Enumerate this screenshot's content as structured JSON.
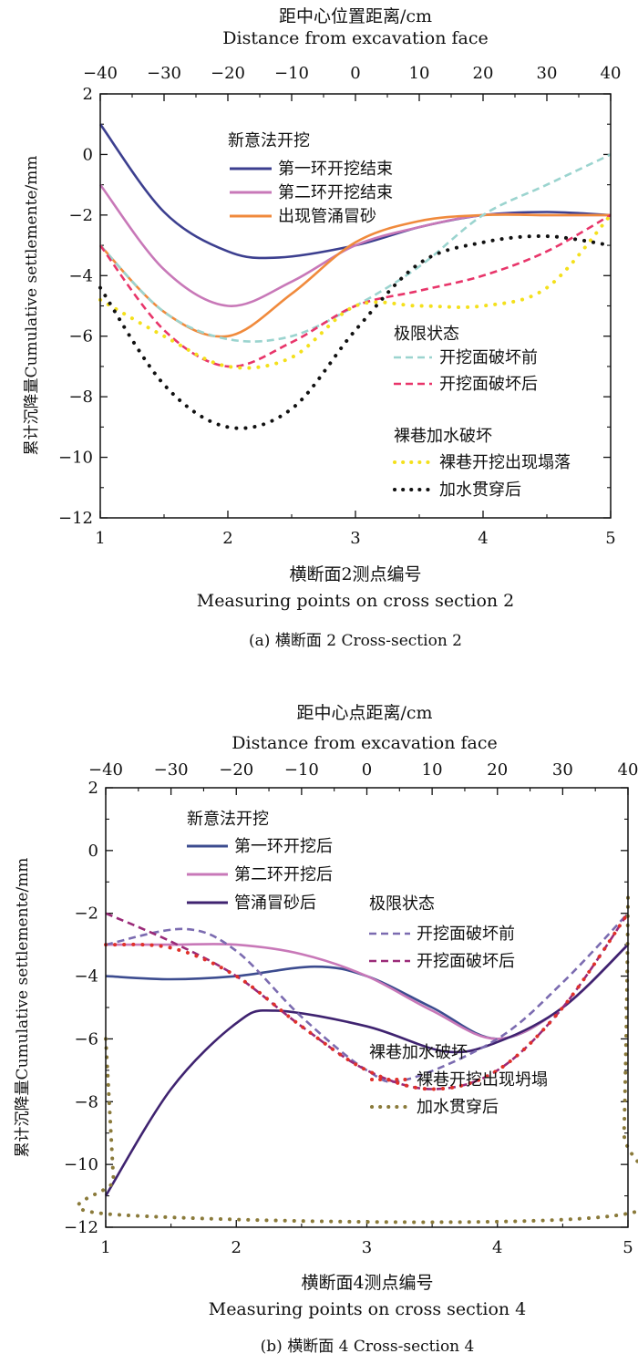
{
  "chart_data": [
    {
      "type": "line",
      "caption": "(a) 横断面 2 Cross-section 2",
      "top_axis_label_cn": "距中心位置距离/cm",
      "top_axis_label_en": "Distance from excavation face",
      "xlabel_cn": "横断面2测点编号",
      "xlabel_en": "Measuring points on cross section 2",
      "ylabel": "累计沉降量Cumulative settlemente/mm",
      "xlim": [
        1,
        5
      ],
      "ylim": [
        -12,
        2
      ],
      "x_ticks": [
        "1",
        "2",
        "3",
        "4",
        "5"
      ],
      "top_ticks": [
        "−40",
        "−30",
        "−20",
        "−10",
        "0",
        "10",
        "20",
        "30",
        "40"
      ],
      "y_ticks": [
        "2",
        "0",
        "−2",
        "−4",
        "−6",
        "−8",
        "−10",
        "−12"
      ],
      "legend_groups": [
        {
          "title": "新意法开挖",
          "entries": [
            0,
            1,
            2
          ]
        },
        {
          "title": "极限状态",
          "entries": [
            3,
            4
          ]
        },
        {
          "title": "裸巷加水破坏",
          "entries": [
            5,
            6
          ]
        }
      ],
      "series": [
        {
          "name": "第一环开挖结束",
          "color": "#3c3f8f",
          "style": "solid",
          "x": [
            1,
            1.5,
            2,
            2.4,
            3,
            3.5,
            4,
            4.5,
            5
          ],
          "y": [
            1.0,
            -1.9,
            -3.2,
            -3.4,
            -3.0,
            -2.4,
            -2.0,
            -1.9,
            -2.0
          ]
        },
        {
          "name": "第二环开挖结束",
          "color": "#c878b8",
          "style": "solid",
          "x": [
            1,
            1.5,
            2,
            2.5,
            3,
            3.5,
            4,
            4.5,
            5
          ],
          "y": [
            -1.0,
            -3.8,
            -5.0,
            -4.2,
            -3.0,
            -2.4,
            -2.0,
            -2.0,
            -2.0
          ]
        },
        {
          "name": "出现管涌冒砂",
          "color": "#f08a3c",
          "style": "solid",
          "x": [
            1,
            1.5,
            2,
            2.5,
            3,
            3.5,
            4,
            4.5,
            5
          ],
          "y": [
            -3.0,
            -5.2,
            -6.0,
            -4.6,
            -2.9,
            -2.2,
            -2.0,
            -2.0,
            -2.0
          ]
        },
        {
          "name": "开挖面破坏前",
          "color": "#9bd4cf",
          "style": "dashed",
          "x": [
            1,
            1.5,
            2,
            2.5,
            3,
            3.5,
            4,
            4.5,
            5
          ],
          "y": [
            -3.0,
            -5.2,
            -6.1,
            -6.0,
            -5.0,
            -3.7,
            -2.0,
            -1.0,
            0.0
          ]
        },
        {
          "name": "开挖面破坏后",
          "color": "#e8356a",
          "style": "dashed",
          "x": [
            1,
            1.5,
            2,
            2.5,
            3,
            3.5,
            4,
            4.5,
            5
          ],
          "y": [
            -3.0,
            -5.8,
            -7.0,
            -6.2,
            -5.0,
            -4.5,
            -4.0,
            -3.2,
            -2.0
          ]
        },
        {
          "name": "裸巷开挖出现塌落",
          "color": "#f4e01c",
          "style": "dotted",
          "x": [
            1,
            1.5,
            2,
            2.5,
            3,
            3.5,
            4,
            4.5,
            5
          ],
          "y": [
            -4.8,
            -6.0,
            -7.0,
            -6.7,
            -5.0,
            -5.0,
            -5.0,
            -4.4,
            -2.0
          ]
        },
        {
          "name": "加水贯穿后",
          "color": "#111111",
          "style": "dotted",
          "x": [
            1,
            1.5,
            2,
            2.5,
            3,
            3.5,
            4,
            4.5,
            5
          ],
          "y": [
            -4.4,
            -7.6,
            -9.0,
            -8.4,
            -5.8,
            -3.6,
            -2.9,
            -2.7,
            -3.0
          ]
        }
      ]
    },
    {
      "type": "line",
      "caption": "(b) 横断面 4  Cross-section 4",
      "top_axis_label_cn": "距中心点距离/cm",
      "top_axis_label_en": "Distance from excavation face",
      "xlabel_cn": "横断面4测点编号",
      "xlabel_en": "Measuring points on cross section 4",
      "ylabel": "累计沉降量Cumulative settlemente/mm",
      "xlim": [
        1,
        5
      ],
      "ylim": [
        -12,
        2
      ],
      "x_ticks": [
        "1",
        "2",
        "3",
        "4",
        "5"
      ],
      "top_ticks": [
        "−40",
        "−30",
        "−20",
        "−10",
        "0",
        "10",
        "20",
        "30",
        "40"
      ],
      "y_ticks": [
        "2",
        "0",
        "−2",
        "−4",
        "−6",
        "−8",
        "−10",
        "−12"
      ],
      "legend_groups": [
        {
          "title": "新意法开挖",
          "entries": [
            0,
            1,
            2
          ]
        },
        {
          "title": "极限状态",
          "entries": [
            3,
            4
          ]
        },
        {
          "title": "裸巷加水破坏",
          "entries": [
            5,
            6
          ]
        }
      ],
      "series": [
        {
          "name": "第一环开挖后",
          "color": "#3c4c8f",
          "style": "solid",
          "x": [
            1,
            1.5,
            2,
            2.6,
            3,
            3.5,
            4,
            4.5,
            5
          ],
          "y": [
            -4.0,
            -4.1,
            -4.0,
            -3.7,
            -4.0,
            -5.0,
            -6.0,
            -5.0,
            -3.0
          ]
        },
        {
          "name": "第二环开挖后",
          "color": "#c878b8",
          "style": "solid",
          "x": [
            1,
            1.5,
            2,
            2.5,
            3,
            3.5,
            4,
            4.5,
            5
          ],
          "y": [
            -3.0,
            -3.0,
            -3.0,
            -3.3,
            -4.0,
            -5.1,
            -6.0,
            -5.0,
            -3.0
          ]
        },
        {
          "name": "管涌冒砂后",
          "color": "#3f2370",
          "style": "solid",
          "x": [
            1,
            1.5,
            2,
            2.3,
            3,
            3.6,
            4,
            4.5,
            5
          ],
          "y": [
            -11.0,
            -7.6,
            -5.5,
            -5.1,
            -5.6,
            -6.4,
            -6.1,
            -5.0,
            -3.0
          ]
        },
        {
          "name": "开挖面破坏前",
          "color": "#7b6bb0",
          "style": "dashed",
          "x": [
            1,
            1.6,
            2,
            2.5,
            3,
            3.3,
            4,
            4.5,
            5
          ],
          "y": [
            -3.0,
            -2.5,
            -3.2,
            -5.3,
            -7.0,
            -7.3,
            -6.0,
            -4.2,
            -2.0
          ]
        },
        {
          "name": "开挖面破坏后",
          "color": "#9a2a78",
          "style": "dashed",
          "x": [
            1,
            1.5,
            2,
            2.5,
            3,
            3.5,
            4,
            4.5,
            5
          ],
          "y": [
            -2.0,
            -2.9,
            -4.0,
            -5.6,
            -7.0,
            -7.6,
            -7.0,
            -5.0,
            -2.0
          ]
        },
        {
          "name": "裸巷开挖出现坍塌",
          "color": "#e0302a",
          "style": "dotted",
          "x": [
            1,
            1.5,
            2,
            2.5,
            3,
            3.5,
            4,
            4.5,
            5
          ],
          "y": [
            -3.0,
            -3.1,
            -4.0,
            -5.6,
            -7.0,
            -7.6,
            -7.0,
            -5.0,
            -2.0
          ]
        },
        {
          "name": "加水贯穿后",
          "color": "#8a7a3a",
          "style": "dotted",
          "x": [
            1,
            1.02,
            1.04,
            1.06,
            1.08,
            4.95,
            4.97,
            4.99,
            5
          ],
          "y": [
            -6.0,
            -7.5,
            -9.0,
            -10.5,
            -11.6,
            -11.6,
            -9.0,
            -5.0,
            -1.5
          ]
        }
      ]
    }
  ]
}
